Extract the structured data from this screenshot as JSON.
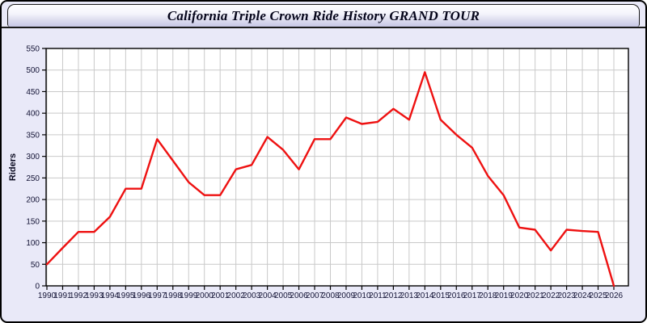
{
  "page": {
    "title": "California Triple Crown Ride History GRAND TOUR"
  },
  "chart_data": {
    "type": "line",
    "title": "California Triple Crown Ride History GRAND TOUR",
    "xlabel": "",
    "ylabel": "Riders",
    "x": [
      1990,
      1991,
      1992,
      1993,
      1994,
      1995,
      1996,
      1997,
      1998,
      1999,
      2000,
      2001,
      2002,
      2003,
      2004,
      2005,
      2006,
      2007,
      2008,
      2009,
      2010,
      2011,
      2012,
      2013,
      2014,
      2015,
      2016,
      2017,
      2018,
      2019,
      2020,
      2021,
      2022,
      2023,
      2024,
      2025,
      2026
    ],
    "series": [
      {
        "name": "Riders",
        "values": [
          50,
          88,
          125,
          125,
          160,
          225,
          225,
          340,
          290,
          240,
          210,
          210,
          270,
          280,
          345,
          315,
          270,
          340,
          340,
          390,
          375,
          380,
          410,
          385,
          495,
          385,
          350,
          320,
          255,
          210,
          135,
          130,
          82,
          130,
          127,
          125,
          0
        ]
      }
    ],
    "ylim": [
      0,
      550
    ],
    "ytick_step": 50,
    "grid": true,
    "legend_position": "none",
    "colors": {
      "line": "#ee1111",
      "grid": "#c9c9c9",
      "plot_background": "#ffffff",
      "page_background": "#e9e9f8",
      "axis": "#000000",
      "tick_text": "#131335"
    }
  }
}
